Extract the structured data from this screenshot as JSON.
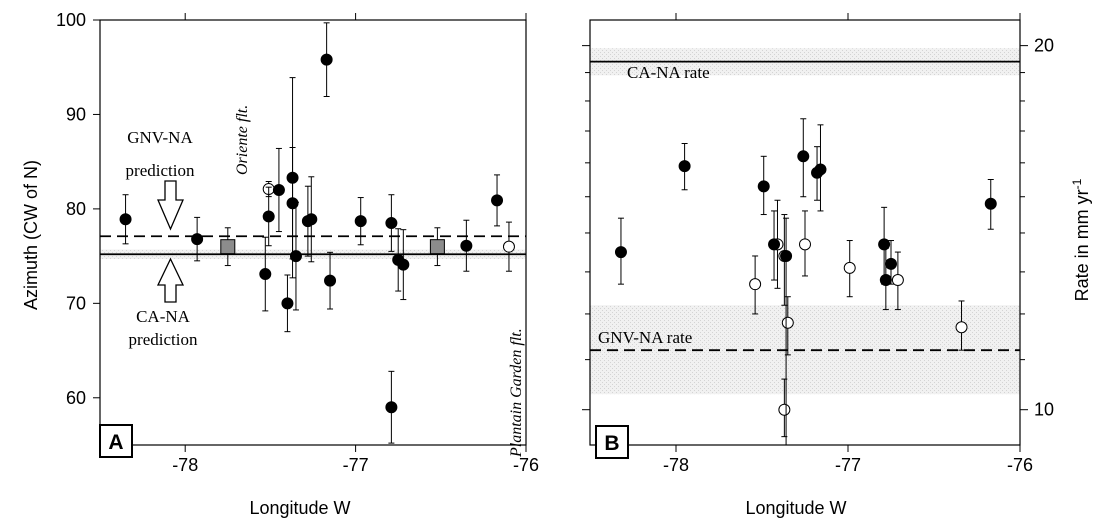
{
  "chart_data": [
    {
      "id": "A",
      "type": "scatter",
      "panel_label": "A",
      "xlabel": "Longitude W",
      "ylabel": "Azimuth (CW of N)",
      "xlim": [
        -78.5,
        -76
      ],
      "ylim": [
        55,
        100
      ],
      "xticks": [
        -78,
        -77,
        -76
      ],
      "yticks": [
        60,
        70,
        80,
        90,
        100
      ],
      "xtick_labels": [
        "-78",
        "-77",
        "-76"
      ],
      "ytick_labels": [
        "60",
        "70",
        "80",
        "90",
        "100"
      ],
      "reference_lines": [
        {
          "name": "CA-NA",
          "value": 75.2,
          "style": "solid",
          "band": [
            74.7,
            75.7
          ]
        },
        {
          "name": "GNV-NA",
          "value": 77.1,
          "style": "dashed"
        }
      ],
      "annotations": {
        "gnv_prediction": [
          "GNV-NA",
          "prediction"
        ],
        "ca_prediction": [
          "CA-NA",
          "prediction"
        ],
        "oriente": "Oriente flt.",
        "plantain": "Plantain Garden flt."
      },
      "filled_points": [
        {
          "x": -78.35,
          "y": 78.9,
          "err": 2.6
        },
        {
          "x": -77.93,
          "y": 76.8,
          "err": 2.3
        },
        {
          "x": -77.53,
          "y": 73.1,
          "err": 3.9
        },
        {
          "x": -77.51,
          "y": 79.2,
          "err": 3.1
        },
        {
          "x": -77.45,
          "y": 82.0,
          "err": 4.4
        },
        {
          "x": -77.4,
          "y": 70.0,
          "err": 3.0
        },
        {
          "x": -77.37,
          "y": 83.3,
          "err": 10.6
        },
        {
          "x": -77.37,
          "y": 80.6,
          "err": 5.9
        },
        {
          "x": -77.35,
          "y": 75.0,
          "err": 5.7
        },
        {
          "x": -77.28,
          "y": 78.7,
          "err": 3.7
        },
        {
          "x": -77.26,
          "y": 78.9,
          "err": 4.5
        },
        {
          "x": -77.17,
          "y": 95.8,
          "err": 3.9
        },
        {
          "x": -77.15,
          "y": 72.4,
          "err": 3.0
        },
        {
          "x": -76.97,
          "y": 78.7,
          "err": 2.5
        },
        {
          "x": -76.79,
          "y": 78.5,
          "err": 3.0
        },
        {
          "x": -76.79,
          "y": 59.0,
          "err": 3.8
        },
        {
          "x": -76.75,
          "y": 74.6,
          "err": 3.3
        },
        {
          "x": -76.72,
          "y": 74.1,
          "err": 3.7
        },
        {
          "x": -76.35,
          "y": 76.1,
          "err": 2.7
        },
        {
          "x": -76.17,
          "y": 80.9,
          "err": 2.7
        }
      ],
      "open_points": [
        {
          "x": -77.51,
          "y": 82.1,
          "err": 0.8
        },
        {
          "x": -76.1,
          "y": 76.0,
          "err": 2.6
        }
      ],
      "square_points": [
        {
          "x": -77.75,
          "y": 76.0,
          "err": 2.0
        },
        {
          "x": -76.52,
          "y": 76.0,
          "err": 2.0
        }
      ]
    },
    {
      "id": "B",
      "type": "scatter",
      "panel_label": "B",
      "xlabel": "Longitude W",
      "ylabel_right": "Rate in mm yr",
      "ylabel_sup": "-1",
      "scale": "log",
      "xlim": [
        -78.5,
        -76
      ],
      "ylim": [
        9.35,
        21
      ],
      "xticks": [
        -78,
        -77,
        -76
      ],
      "yticks": [
        10,
        20
      ],
      "xtick_labels": [
        "-78",
        "-77",
        "-76"
      ],
      "ytick_labels": [
        "10",
        "20"
      ],
      "reference_lines": [
        {
          "name": "CA-NA rate",
          "value": 19.4,
          "style": "solid",
          "band": [
            18.9,
            19.9
          ]
        },
        {
          "name": "GNV-NA rate",
          "value": 11.2,
          "style": "dashed",
          "band": [
            10.3,
            12.2
          ]
        }
      ],
      "annotations": {
        "ca_rate": "CA-NA rate",
        "gnv_rate": "GNV-NA rate"
      },
      "filled_points": [
        {
          "x": -78.32,
          "y": 13.5,
          "lo": 12.7,
          "hi": 14.4
        },
        {
          "x": -77.95,
          "y": 15.9,
          "lo": 15.2,
          "hi": 16.6
        },
        {
          "x": -77.49,
          "y": 15.3,
          "lo": 14.5,
          "hi": 16.2
        },
        {
          "x": -77.43,
          "y": 13.7,
          "lo": 12.8,
          "hi": 14.6
        },
        {
          "x": -77.36,
          "y": 13.4,
          "lo": 9.35,
          "hi": 14.4
        },
        {
          "x": -77.26,
          "y": 16.2,
          "lo": 15.0,
          "hi": 17.4
        },
        {
          "x": -77.18,
          "y": 15.7,
          "lo": 14.9,
          "hi": 16.5
        },
        {
          "x": -77.16,
          "y": 15.8,
          "lo": 14.6,
          "hi": 17.2
        },
        {
          "x": -76.79,
          "y": 13.7,
          "lo": 12.7,
          "hi": 14.7
        },
        {
          "x": -76.78,
          "y": 12.8,
          "lo": 12.1,
          "hi": 13.6
        },
        {
          "x": -76.75,
          "y": 13.2,
          "lo": 12.7,
          "hi": 13.8
        },
        {
          "x": -76.17,
          "y": 14.8,
          "lo": 14.1,
          "hi": 15.5
        }
      ],
      "open_points": [
        {
          "x": -77.54,
          "y": 12.7,
          "lo": 12.0,
          "hi": 13.4
        },
        {
          "x": -77.41,
          "y": 13.7,
          "lo": 12.6,
          "hi": 14.9
        },
        {
          "x": -77.37,
          "y": 13.4,
          "lo": 12.2,
          "hi": 14.5
        },
        {
          "x": -77.35,
          "y": 11.8,
          "lo": 11.1,
          "hi": 12.4
        },
        {
          "x": -77.37,
          "y": 10.0,
          "lo": 9.5,
          "hi": 10.6
        },
        {
          "x": -77.25,
          "y": 13.7,
          "lo": 12.9,
          "hi": 14.6
        },
        {
          "x": -76.99,
          "y": 13.1,
          "lo": 12.4,
          "hi": 13.8
        },
        {
          "x": -76.71,
          "y": 12.8,
          "lo": 12.1,
          "hi": 13.5
        },
        {
          "x": -76.34,
          "y": 11.7,
          "lo": 11.2,
          "hi": 12.3
        }
      ]
    }
  ]
}
